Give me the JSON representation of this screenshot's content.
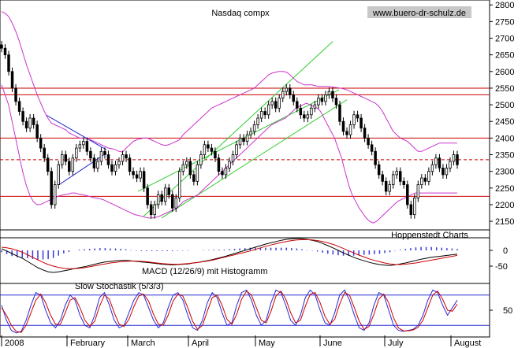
{
  "chart_data": [
    {
      "type": "candlestick",
      "title": "Nasdaq compx",
      "watermark": "www.buero-dr-schulz.de",
      "source_label": "Hoppenstedt Charts",
      "y_ticks": [
        2800,
        2750,
        2700,
        2650,
        2600,
        2550,
        2500,
        2450,
        2400,
        2350,
        2300,
        2250,
        2200,
        2150
      ],
      "ylim": [
        2110,
        2810
      ],
      "horizontal_levels": [
        {
          "value": 2550,
          "style": "solid",
          "color": "#cc0000"
        },
        {
          "value": 2530,
          "style": "solid",
          "color": "#cc0000"
        },
        {
          "value": 2400,
          "style": "solid",
          "color": "#cc0000"
        },
        {
          "value": 2335,
          "style": "dashed",
          "color": "#cc0000"
        },
        {
          "value": 2225,
          "style": "solid",
          "color": "#cc0000"
        }
      ],
      "close_series": [
        2670,
        2650,
        2600,
        2550,
        2510,
        2480,
        2450,
        2430,
        2460,
        2440,
        2400,
        2370,
        2340,
        2300,
        2200,
        2260,
        2320,
        2350,
        2330,
        2300,
        2340,
        2370,
        2380,
        2390,
        2360,
        2340,
        2310,
        2330,
        2360,
        2350,
        2320,
        2300,
        2320,
        2330,
        2350,
        2340,
        2300,
        2290,
        2280,
        2300,
        2250,
        2200,
        2170,
        2200,
        2230,
        2210,
        2250,
        2230,
        2190,
        2220,
        2300,
        2320,
        2330,
        2290,
        2270,
        2320,
        2350,
        2380,
        2370,
        2360,
        2340,
        2300,
        2290,
        2310,
        2330,
        2350,
        2380,
        2400,
        2390,
        2410,
        2420,
        2440,
        2460,
        2480,
        2470,
        2500,
        2510,
        2490,
        2520,
        2540,
        2550,
        2530,
        2510,
        2490,
        2470,
        2460,
        2470,
        2490,
        2500,
        2520,
        2510,
        2530,
        2540,
        2520,
        2500,
        2450,
        2420,
        2410,
        2440,
        2470,
        2460,
        2430,
        2400,
        2380,
        2360,
        2320,
        2290,
        2270,
        2240,
        2260,
        2290,
        2300,
        2270,
        2260,
        2200,
        2170,
        2220,
        2260,
        2280,
        2270,
        2300,
        2320,
        2340,
        2310,
        2290,
        2310,
        2330,
        2350,
        2320
      ],
      "bollinger_upper": [
        2780,
        2775,
        2765,
        2745,
        2720,
        2690,
        2655,
        2620,
        2590,
        2560,
        2530,
        2505,
        2480,
        2460,
        2445,
        2440,
        2435,
        2430,
        2425,
        2415,
        2410,
        2405,
        2400,
        2400,
        2398,
        2395,
        2390,
        2385,
        2380,
        2375,
        2370,
        2368,
        2365,
        2360,
        2358,
        2370,
        2380,
        2390,
        2395,
        2398,
        2400,
        2400,
        2395,
        2390,
        2385,
        2380,
        2378,
        2380,
        2385,
        2390,
        2395,
        2410,
        2420,
        2430,
        2440,
        2450,
        2460,
        2470,
        2480,
        2490,
        2495,
        2500,
        2505,
        2510,
        2515,
        2520,
        2525,
        2530,
        2535,
        2540,
        2545,
        2550,
        2560,
        2570,
        2580,
        2590,
        2595,
        2598,
        2600,
        2600,
        2598,
        2590,
        2580,
        2570,
        2565,
        2560,
        2560,
        2560,
        2558,
        2555,
        2555,
        2555,
        2555,
        2553,
        2552,
        2550,
        2548,
        2545,
        2540,
        2535,
        2530,
        2525,
        2520,
        2515,
        2510,
        2505,
        2495,
        2480,
        2460,
        2440,
        2420,
        2410,
        2400,
        2395,
        2390,
        2380,
        2370,
        2360,
        2360,
        2365,
        2370,
        2375,
        2380,
        2385,
        2385,
        2385,
        2385,
        2385,
        2385
      ],
      "bollinger_lower": [
        2560,
        2530,
        2500,
        2450,
        2400,
        2350,
        2300,
        2260,
        2230,
        2210,
        2200,
        2200,
        2205,
        2210,
        2215,
        2220,
        2225,
        2228,
        2230,
        2232,
        2235,
        2235,
        2232,
        2230,
        2228,
        2225,
        2222,
        2220,
        2218,
        2215,
        2210,
        2205,
        2200,
        2195,
        2190,
        2185,
        2180,
        2175,
        2170,
        2168,
        2165,
        2162,
        2160,
        2160,
        2162,
        2165,
        2170,
        2175,
        2180,
        2185,
        2190,
        2200,
        2210,
        2215,
        2220,
        2225,
        2230,
        2240,
        2250,
        2260,
        2270,
        2280,
        2290,
        2300,
        2310,
        2320,
        2330,
        2340,
        2350,
        2360,
        2370,
        2380,
        2390,
        2400,
        2410,
        2420,
        2430,
        2440,
        2445,
        2450,
        2455,
        2460,
        2470,
        2480,
        2490,
        2495,
        2500,
        2505,
        2500,
        2495,
        2490,
        2480,
        2460,
        2440,
        2420,
        2400,
        2370,
        2340,
        2300,
        2260,
        2230,
        2210,
        2190,
        2175,
        2160,
        2150,
        2145,
        2150,
        2160,
        2170,
        2180,
        2190,
        2200,
        2210,
        2215,
        2220,
        2225,
        2230,
        2235,
        2235,
        2235,
        2235,
        2235,
        2235,
        2235,
        2235,
        2235,
        2235,
        2235,
        2235,
        2235
      ]
    },
    {
      "type": "line",
      "label": "MACD (12/26/9) mit Histogramm",
      "y_ticks": [
        0,
        -50
      ],
      "ylim": [
        -100,
        60
      ],
      "macd": [
        5,
        -2,
        -10,
        -18,
        -25,
        -35,
        -45,
        -55,
        -62,
        -68,
        -70,
        -68,
        -65,
        -62,
        -58,
        -55,
        -52,
        -48,
        -44,
        -40,
        -37,
        -35,
        -33,
        -32,
        -32,
        -33,
        -35,
        -37,
        -38,
        -40,
        -42,
        -44,
        -45,
        -46,
        -45,
        -44,
        -43,
        -40,
        -38,
        -35,
        -32,
        -28,
        -24,
        -20,
        -15,
        -10,
        -5,
        0,
        5,
        10,
        15,
        20,
        24,
        28,
        32,
        35,
        37,
        38,
        37,
        35,
        32,
        28,
        22,
        15,
        8,
        0,
        -8,
        -15,
        -22,
        -28,
        -33,
        -38,
        -42,
        -45,
        -47,
        -48,
        -46,
        -43,
        -40,
        -36,
        -32,
        -28,
        -25,
        -22,
        -20,
        -18,
        -16,
        -14,
        -12
      ],
      "signal": [
        10,
        8,
        5,
        0,
        -6,
        -14,
        -22,
        -30,
        -38,
        -45,
        -50,
        -54,
        -57,
        -58,
        -58,
        -57,
        -55,
        -52,
        -49,
        -46,
        -43,
        -40,
        -38,
        -36,
        -35,
        -34,
        -34,
        -35,
        -36,
        -38,
        -40,
        -42,
        -43,
        -44,
        -44,
        -43,
        -42,
        -40,
        -38,
        -36,
        -33,
        -30,
        -26,
        -22,
        -18,
        -14,
        -10,
        -6,
        -2,
        3,
        8,
        13,
        17,
        21,
        25,
        28,
        31,
        33,
        34,
        34,
        33,
        31,
        28,
        24,
        19,
        13,
        6,
        -1,
        -8,
        -15,
        -21,
        -27,
        -32,
        -36,
        -40,
        -43,
        -45,
        -45,
        -44,
        -42,
        -40,
        -37,
        -34,
        -31,
        -28,
        -25,
        -22,
        -19,
        -16
      ]
    },
    {
      "type": "line",
      "label": "Slow Stochastik (5/3/3)",
      "y_ticks": [
        50
      ],
      "ylim": [
        0,
        100
      ],
      "reference_lines": [
        20,
        80
      ],
      "k": [
        60,
        30,
        10,
        5,
        8,
        30,
        60,
        85,
        80,
        50,
        25,
        15,
        30,
        60,
        80,
        70,
        40,
        20,
        15,
        40,
        75,
        85,
        60,
        30,
        15,
        20,
        45,
        70,
        85,
        80,
        55,
        30,
        15,
        25,
        55,
        80,
        85,
        70,
        40,
        15,
        10,
        30,
        65,
        85,
        75,
        45,
        20,
        25,
        60,
        85,
        90,
        70,
        40,
        20,
        30,
        65,
        90,
        85,
        60,
        30,
        20,
        40,
        75,
        90,
        80,
        50,
        25,
        20,
        45,
        80,
        90,
        70,
        40,
        15,
        10,
        25,
        60,
        85,
        80,
        50,
        20,
        10,
        8,
        10,
        12,
        20,
        40,
        70,
        90,
        85,
        60,
        40,
        55,
        70
      ],
      "d": [
        55,
        40,
        20,
        8,
        6,
        20,
        45,
        70,
        82,
        65,
        40,
        22,
        22,
        45,
        70,
        75,
        55,
        30,
        18,
        28,
        58,
        80,
        72,
        45,
        22,
        18,
        32,
        57,
        78,
        82,
        68,
        42,
        22,
        20,
        40,
        68,
        82,
        78,
        55,
        28,
        12,
        20,
        48,
        75,
        80,
        60,
        32,
        22,
        42,
        72,
        88,
        80,
        55,
        30,
        25,
        48,
        78,
        88,
        72,
        45,
        25,
        30,
        58,
        82,
        85,
        65,
        38,
        22,
        32,
        62,
        85,
        80,
        55,
        28,
        12,
        18,
        42,
        72,
        82,
        65,
        35,
        15,
        9,
        9,
        11,
        16,
        30,
        55,
        80,
        88,
        72,
        50,
        48,
        62
      ]
    }
  ],
  "x_axis": {
    "labels": [
      "2008",
      "February",
      "March",
      "April",
      "May",
      "June",
      "July",
      "August"
    ]
  }
}
